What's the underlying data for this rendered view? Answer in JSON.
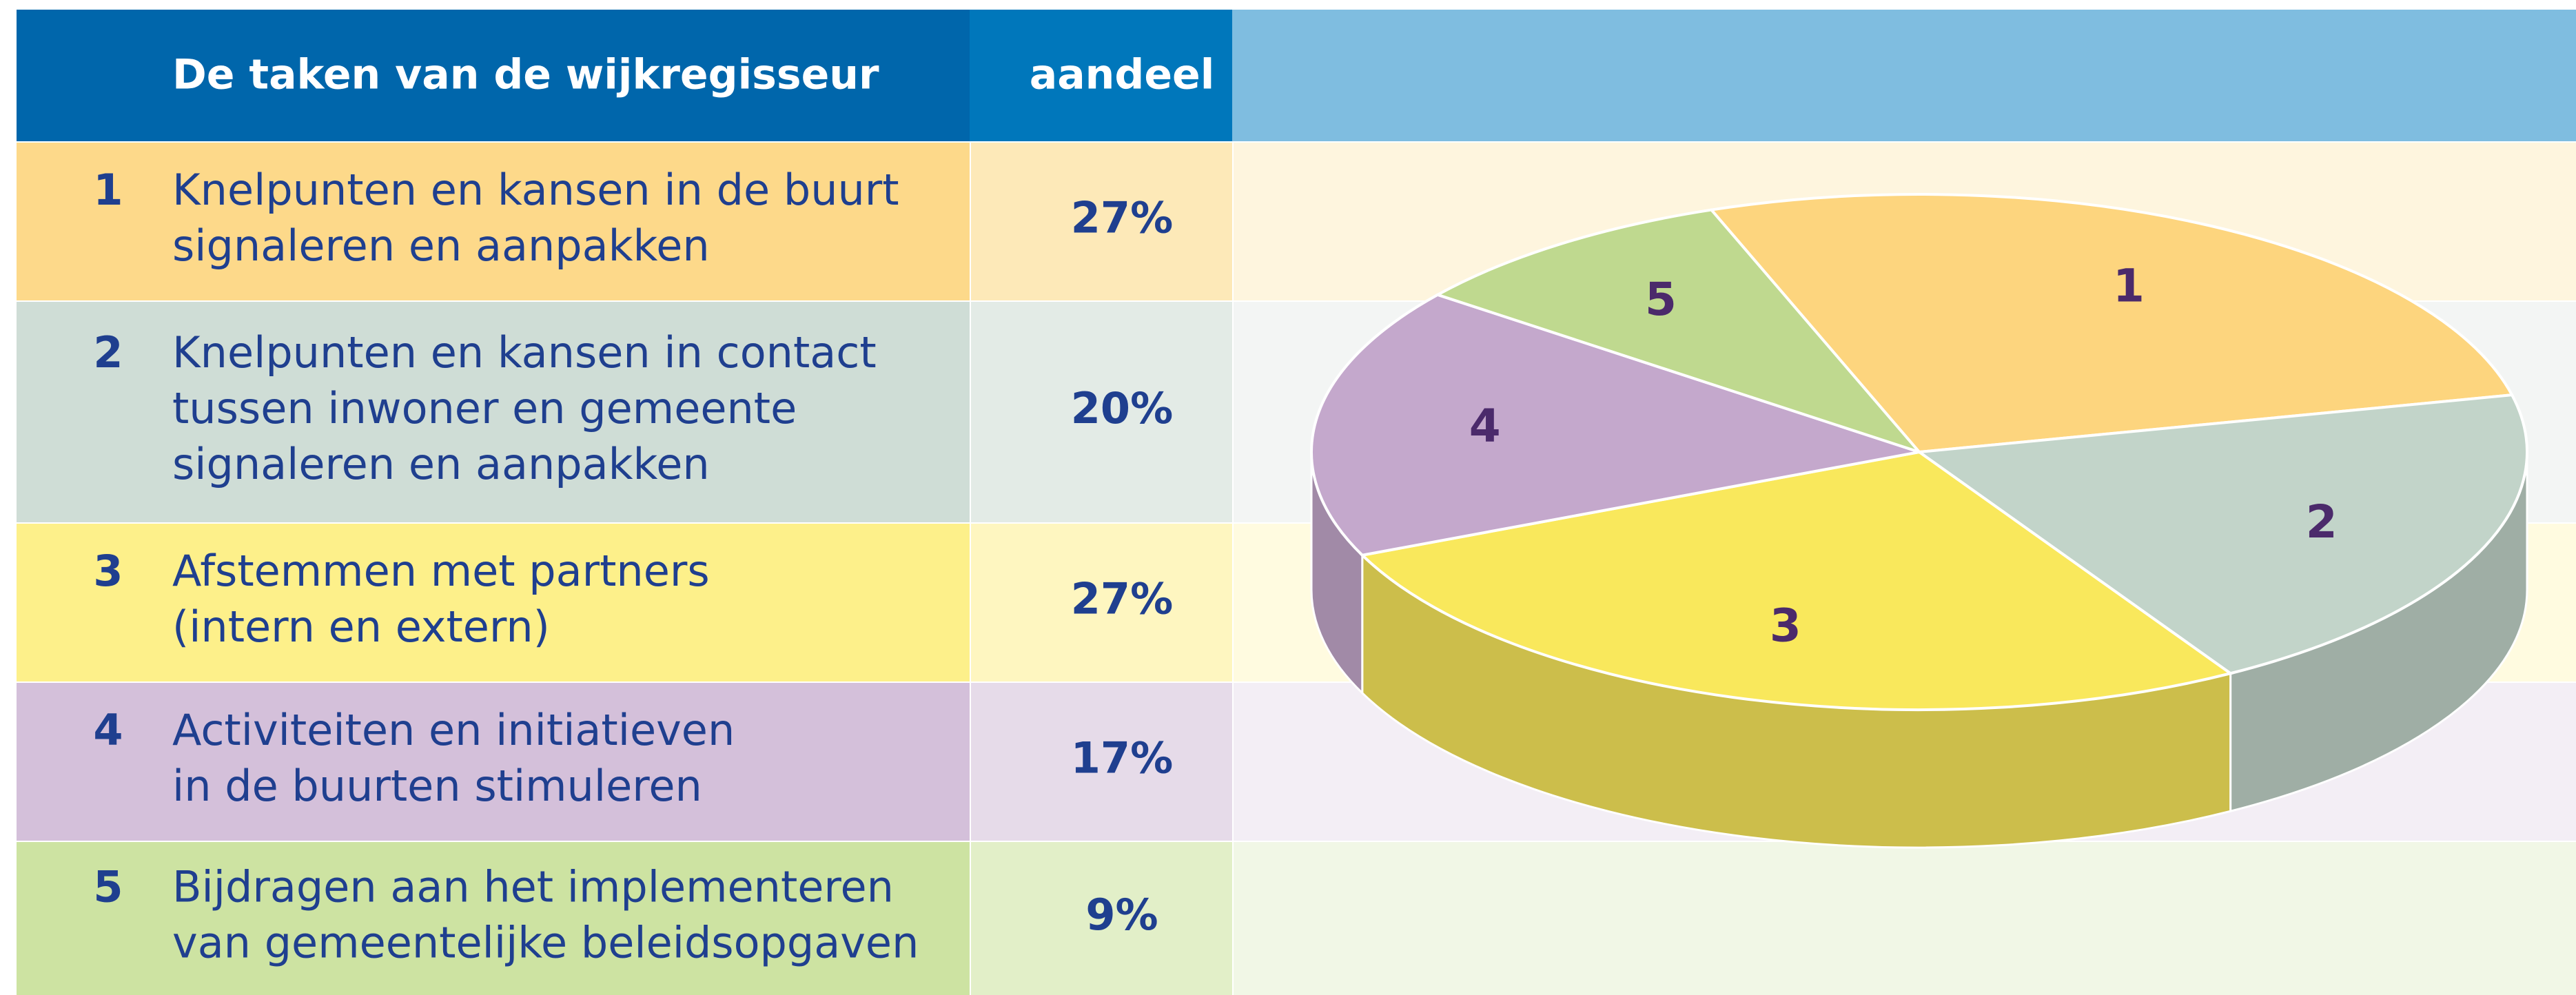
{
  "table": {
    "header": [
      "De taken van de wijkregisseur",
      "aandeel"
    ],
    "rows": [
      {
        "task": [
          "Knelpunten en kansen in de buurt",
          "signaleren en aanpakken"
        ]
      },
      {
        "task": [
          "Knelpunten en kansen in contact",
          "tussen inwoner en gemeente",
          "signaleren en aanpakken"
        ]
      },
      {
        "task": [
          "Afstemmen met partners",
          "(intern en extern)"
        ]
      },
      {
        "task": [
          "Activiteiten en initiatieven",
          "in de buurten stimuleren"
        ]
      },
      {
        "task": [
          "Bijdragen aan het implementeren",
          "van gemeentelijke beleidsopgaven"
        ]
      }
    ]
  },
  "chart_data": {
    "type": "pie",
    "categories": [
      "1",
      "2",
      "3",
      "4",
      "5"
    ],
    "values": [
      27,
      20,
      27,
      17,
      9
    ],
    "value_labels": [
      "27%",
      "20%",
      "27%",
      "17%",
      "9%"
    ],
    "colors": [
      "#fdd57e",
      "#c2d4c9",
      "#f9e85c",
      "#c4a8cc",
      "#bfd98f"
    ]
  }
}
